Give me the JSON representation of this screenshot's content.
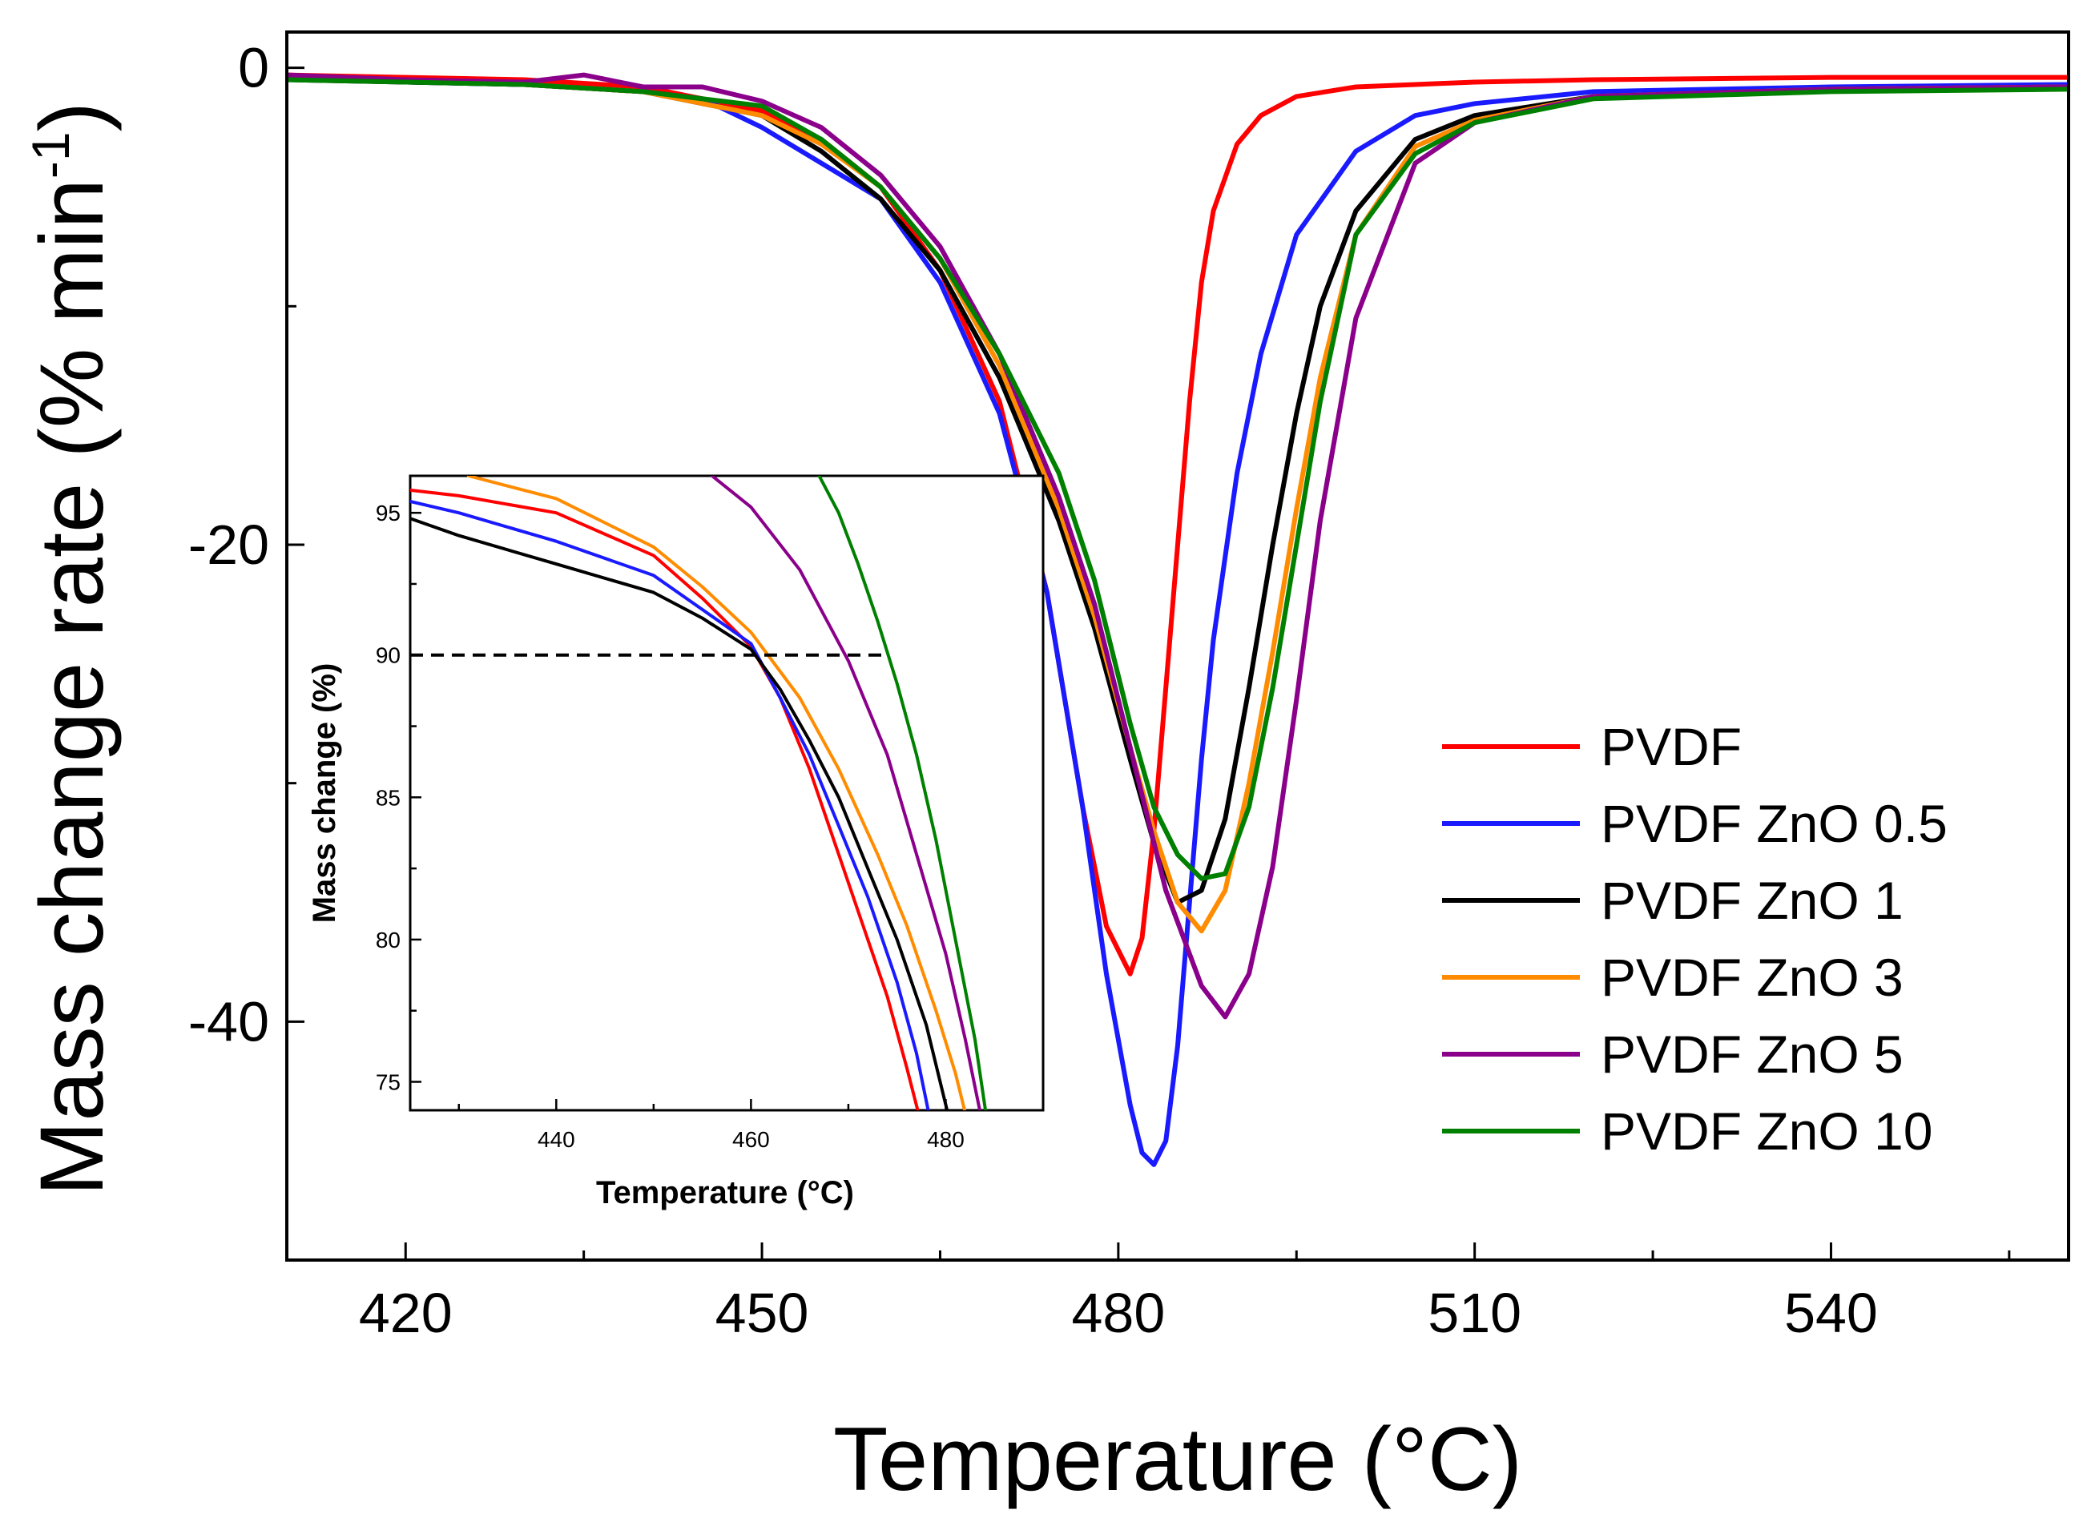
{
  "chart_data": {
    "main": {
      "type": "line",
      "title": "",
      "xlabel": "Temperature (°C)",
      "ylabel": "Mass change rate (% min",
      "ylabel_sup": "-1",
      "ylabel_close": ")",
      "xlim": [
        410,
        560
      ],
      "ylim": [
        -50,
        1.5
      ],
      "x_ticks": [
        420,
        450,
        480,
        510,
        540
      ],
      "x_tick_labels": [
        "420",
        "450",
        "480",
        "510",
        "540"
      ],
      "y_ticks": [
        0,
        -20,
        -40
      ],
      "y_tick_labels": [
        "0",
        "-20",
        "-40"
      ],
      "legend_position": "center-right",
      "series": [
        {
          "name": "PVDF",
          "color": "#ff0000",
          "x": [
            410,
            420,
            430,
            440,
            450,
            455,
            460,
            465,
            470,
            474,
            477,
            479,
            481,
            482,
            483,
            484,
            485,
            486,
            487,
            488,
            490,
            492,
            495,
            500,
            510,
            520,
            540,
            560
          ],
          "y": [
            -0.3,
            -0.4,
            -0.5,
            -0.8,
            -1.8,
            -3.0,
            -5.0,
            -8.5,
            -14.0,
            -22.0,
            -31.0,
            -36.0,
            -38.0,
            -36.5,
            -32.0,
            -26.0,
            -20.0,
            -14.0,
            -9.0,
            -6.0,
            -3.2,
            -2.0,
            -1.2,
            -0.8,
            -0.6,
            -0.5,
            -0.4,
            -0.4
          ]
        },
        {
          "name": "PVDF ZnO 0.5",
          "color": "#1a1aff",
          "x": [
            410,
            420,
            430,
            440,
            445,
            450,
            455,
            460,
            465,
            470,
            474,
            477,
            479,
            481,
            482,
            483,
            484,
            485,
            486,
            487,
            488,
            490,
            492,
            495,
            500,
            505,
            510,
            520,
            540,
            560
          ],
          "y": [
            -0.4,
            -0.6,
            -0.7,
            -1.0,
            -1.3,
            -2.5,
            -4.0,
            -5.5,
            -9.0,
            -14.5,
            -22.0,
            -31.0,
            -38.0,
            -43.5,
            -45.5,
            -46.0,
            -45.0,
            -41.0,
            -35.0,
            -29.0,
            -24.0,
            -17.0,
            -12.0,
            -7.0,
            -3.5,
            -2.0,
            -1.5,
            -1.0,
            -0.8,
            -0.7
          ]
        },
        {
          "name": "PVDF ZnO 1",
          "color": "#000000",
          "x": [
            410,
            420,
            430,
            440,
            450,
            455,
            460,
            465,
            470,
            475,
            478,
            481,
            483,
            485,
            487,
            489,
            491,
            493,
            495,
            497,
            500,
            505,
            510,
            520,
            540,
            560
          ],
          "y": [
            -0.5,
            -0.6,
            -0.7,
            -1.0,
            -2.0,
            -3.5,
            -5.5,
            -8.5,
            -13.0,
            -19.0,
            -23.5,
            -29.0,
            -32.5,
            -35.0,
            -34.5,
            -31.5,
            -26.0,
            -20.0,
            -14.5,
            -10.0,
            -6.0,
            -3.0,
            -2.0,
            -1.2,
            -0.9,
            -0.8
          ]
        },
        {
          "name": "PVDF ZnO 3",
          "color": "#ff8c00",
          "x": [
            410,
            420,
            430,
            440,
            450,
            455,
            460,
            465,
            470,
            475,
            478,
            481,
            483,
            485,
            487,
            489,
            491,
            493,
            495,
            497,
            500,
            505,
            510,
            520,
            540,
            560
          ],
          "y": [
            -0.4,
            -0.5,
            -0.7,
            -1.0,
            -2.0,
            -3.2,
            -5.0,
            -8.0,
            -12.5,
            -18.5,
            -23.0,
            -28.5,
            -32.0,
            -35.0,
            -36.2,
            -34.5,
            -30.0,
            -24.5,
            -18.5,
            -13.0,
            -7.0,
            -3.3,
            -2.2,
            -1.2,
            -0.9,
            -0.8
          ]
        },
        {
          "name": "PVDF ZnO 5",
          "color": "#8b008b",
          "x": [
            410,
            420,
            430,
            435,
            440,
            445,
            450,
            455,
            460,
            465,
            470,
            475,
            478,
            481,
            484,
            487,
            489,
            491,
            493,
            495,
            497,
            500,
            505,
            510,
            520,
            540,
            560
          ],
          "y": [
            -0.3,
            -0.5,
            -0.6,
            -0.3,
            -0.8,
            -0.8,
            -1.4,
            -2.5,
            -4.5,
            -7.5,
            -12.0,
            -18.0,
            -22.5,
            -28.5,
            -34.5,
            -38.5,
            -39.8,
            -38.0,
            -33.5,
            -26.5,
            -19.0,
            -10.5,
            -4.0,
            -2.3,
            -1.2,
            -0.9,
            -0.8
          ]
        },
        {
          "name": "PVDF ZnO 10",
          "color": "#008000",
          "x": [
            410,
            420,
            430,
            440,
            450,
            455,
            460,
            465,
            470,
            475,
            478,
            481,
            483,
            485,
            487,
            489,
            491,
            493,
            495,
            497,
            500,
            505,
            510,
            520,
            540,
            560
          ],
          "y": [
            -0.5,
            -0.6,
            -0.7,
            -1.0,
            -1.6,
            -3.0,
            -5.0,
            -8.0,
            -12.0,
            -17.0,
            -21.5,
            -27.5,
            -31.0,
            -33.0,
            -34.0,
            -33.8,
            -31.0,
            -26.0,
            -20.0,
            -14.0,
            -7.0,
            -3.6,
            -2.3,
            -1.3,
            -1.0,
            -0.9
          ]
        }
      ]
    },
    "inset": {
      "type": "line",
      "xlabel": "Temperature (°C)",
      "ylabel": "Mass change (%)",
      "xlim": [
        425,
        490
      ],
      "ylim": [
        74,
        96.3
      ],
      "x_ticks": [
        440,
        460,
        480
      ],
      "x_tick_labels": [
        "440",
        "460",
        "480"
      ],
      "y_ticks": [
        75,
        80,
        85,
        90,
        95
      ],
      "y_tick_labels": [
        "75",
        "80",
        "85",
        "90",
        "95"
      ],
      "reference_line": {
        "y": 90,
        "x_end": 474,
        "style": "dashed"
      },
      "series": [
        {
          "name": "PVDF",
          "color": "#ff0000",
          "x": [
            425,
            430,
            440,
            450,
            455,
            460,
            463,
            466,
            469,
            472,
            474,
            476,
            477.5
          ],
          "y": [
            95.8,
            95.6,
            95.0,
            93.5,
            92.0,
            90.3,
            88.5,
            86.0,
            83.0,
            80.0,
            78.0,
            75.5,
            73.5
          ]
        },
        {
          "name": "PVDF ZnO 0.5",
          "color": "#1a1aff",
          "x": [
            425,
            430,
            440,
            450,
            455,
            460,
            463,
            466,
            469,
            472,
            475,
            477,
            478.5
          ],
          "y": [
            95.4,
            95.0,
            94.0,
            92.8,
            91.6,
            90.4,
            88.5,
            86.5,
            84.0,
            81.5,
            78.5,
            76.0,
            73.5
          ]
        },
        {
          "name": "PVDF ZnO 1",
          "color": "#000000",
          "x": [
            425,
            430,
            440,
            450,
            455,
            460,
            463,
            466,
            469,
            472,
            475,
            478,
            480.5
          ],
          "y": [
            94.8,
            94.2,
            93.2,
            92.2,
            91.3,
            90.2,
            88.8,
            87.0,
            85.0,
            82.5,
            80.0,
            77.0,
            73.5
          ]
        },
        {
          "name": "PVDF ZnO 3",
          "color": "#ff8c00",
          "x": [
            431,
            440,
            450,
            455,
            460,
            465,
            469,
            473,
            476,
            479,
            481,
            482.3
          ],
          "y": [
            96.3,
            95.5,
            93.8,
            92.4,
            90.8,
            88.5,
            86.0,
            83.0,
            80.5,
            77.5,
            75.3,
            73.5
          ]
        },
        {
          "name": "PVDF ZnO 5",
          "color": "#8b008b",
          "x": [
            456,
            460,
            465,
            470,
            474,
            477,
            480,
            482,
            483.8
          ],
          "y": [
            96.3,
            95.2,
            93.0,
            89.8,
            86.5,
            83.0,
            79.5,
            76.5,
            73.5
          ]
        },
        {
          "name": "PVDF ZnO 10",
          "color": "#008000",
          "x": [
            467,
            469,
            471,
            473,
            475,
            477,
            479,
            481,
            483,
            484.3
          ],
          "y": [
            96.3,
            95.0,
            93.2,
            91.2,
            89.0,
            86.5,
            83.5,
            80.0,
            76.5,
            73.5
          ]
        }
      ]
    }
  }
}
